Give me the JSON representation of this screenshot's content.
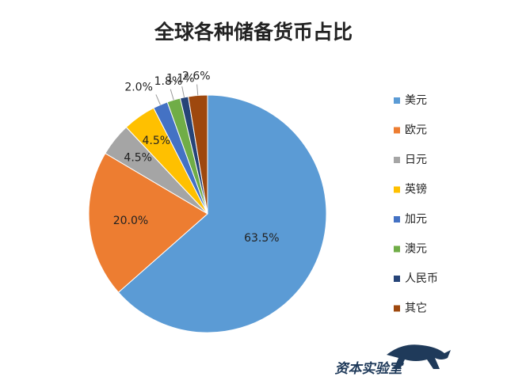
{
  "chart_data": {
    "type": "pie",
    "title": "全球各种储备货币占比",
    "categories": [
      "美元",
      "欧元",
      "日元",
      "英镑",
      "加元",
      "澳元",
      "人民币",
      "其它"
    ],
    "values": [
      63.5,
      20.0,
      4.5,
      4.5,
      2.0,
      1.8,
      1.1,
      2.6
    ],
    "value_labels": [
      "63.5%",
      "20.0%",
      "4.5%",
      "4.5%",
      "2.0%",
      "1.8%",
      "1.1%",
      "2.6%"
    ],
    "colors": [
      "#5b9bd5",
      "#ed7d31",
      "#a5a5a5",
      "#ffc000",
      "#4472c4",
      "#70ad47",
      "#264478",
      "#9e480e"
    ],
    "legend": "right",
    "watermark": "资本实验室"
  }
}
